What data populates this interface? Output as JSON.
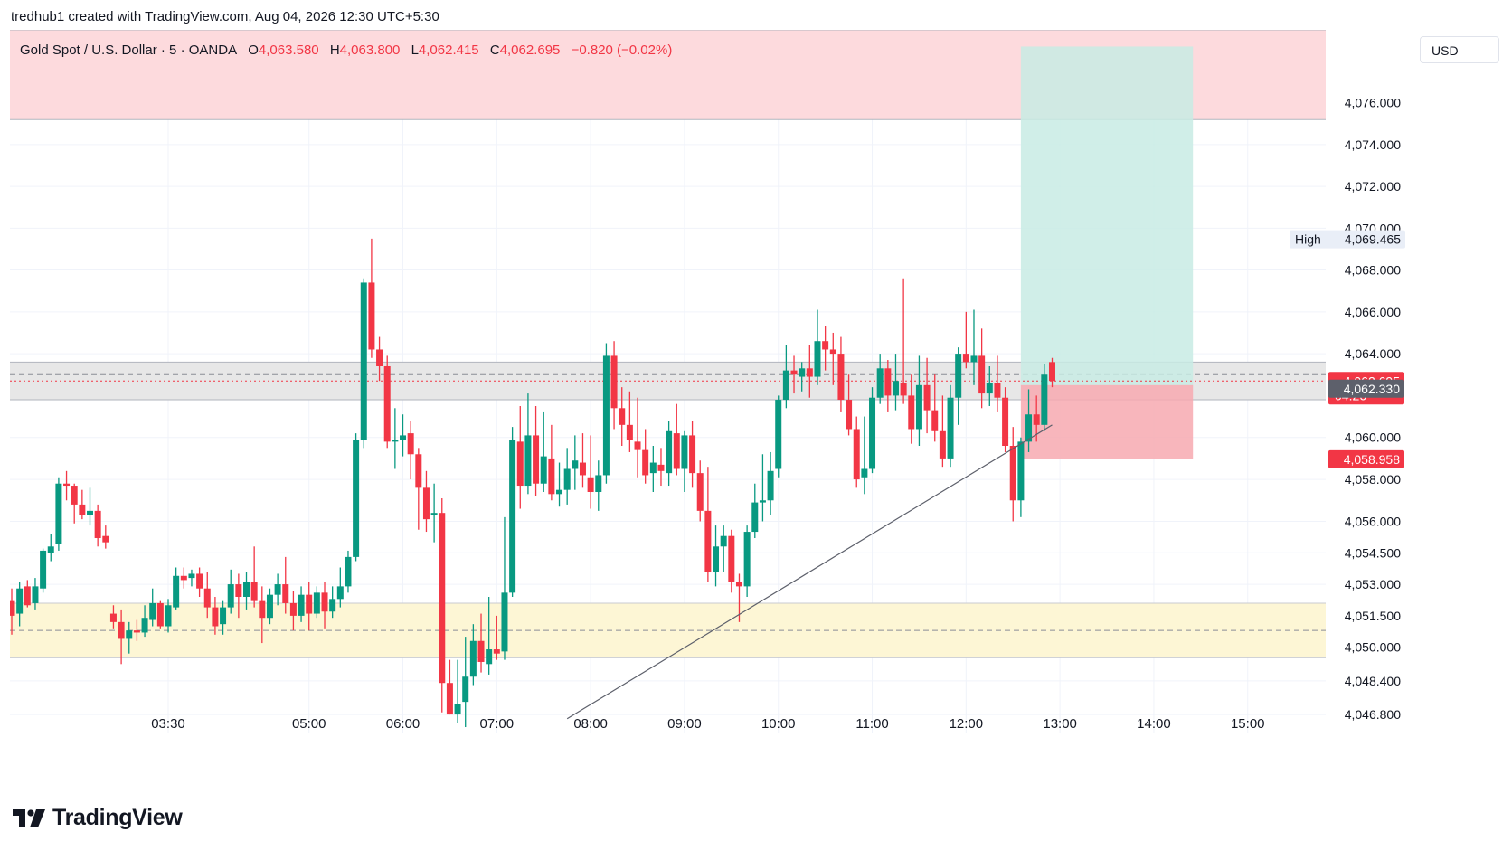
{
  "credit": "tredhub1 created with TradingView.com, Aug 04, 2026 12:30 UTC+5:30",
  "legend": {
    "symbol": "Gold Spot / U.S. Dollar · 5 · OANDA",
    "o_label": "O",
    "o_value": "4,063.580",
    "h_label": "H",
    "h_value": "4,063.800",
    "l_label": "L",
    "l_value": "4,062.415",
    "c_label": "C",
    "c_value": "4,062.695",
    "change": "−0.820 (−0.02%)"
  },
  "currency_button": "USD",
  "brand": "TradingView",
  "colors": {
    "up": "#089981",
    "down": "#f23645",
    "supply_zone": "#fdd8db",
    "demand_zone": "#fdf5d3",
    "mid_zone": "#e6e6e6",
    "target_zone": "#c8ebe4",
    "stop_zone": "#f7a9b0"
  },
  "chart_data": {
    "type": "candlestick",
    "title": "Gold Spot / U.S. Dollar · 5 · OANDA",
    "timeframe_minutes": 5,
    "x_ticks": [
      "03:30",
      "05:00",
      "06:00",
      "07:00",
      "08:00",
      "09:00",
      "10:00",
      "11:00",
      "12:00",
      "13:00",
      "14:00",
      "15:00"
    ],
    "y_ticks": [
      "4,046.800",
      "4,048.400",
      "4,050.000",
      "4,051.500",
      "4,053.000",
      "4,054.500",
      "4,056.000",
      "4,058.000",
      "4,060.000",
      "4,062.000",
      "4,064.000",
      "4,066.000",
      "4,068.000",
      "4,070.000",
      "4,072.000",
      "4,074.000",
      "4,076.000"
    ],
    "y_tick_values": [
      4046.8,
      4048.4,
      4050.0,
      4051.5,
      4053.0,
      4054.5,
      4056.0,
      4058.0,
      4060.0,
      4062.0,
      4064.0,
      4066.0,
      4068.0,
      4070.0,
      4072.0,
      4074.0,
      4076.0
    ],
    "y_scale": "log",
    "ylim": [
      4045.9,
      4079.5
    ],
    "x_range": [
      "01:50",
      "15:25"
    ],
    "grid": true,
    "last_price": {
      "value": "4,062.695",
      "countdown": "04:26",
      "num": 4062.695
    },
    "marked_price": {
      "value": "4,062.330",
      "num": 4062.33
    },
    "stop_price": {
      "value": "4,058.958",
      "num": 4058.958
    },
    "high_marker": {
      "label": "High",
      "value": "4,069.465",
      "num": 4069.465
    },
    "zones": [
      {
        "name": "supply",
        "from": 4075.2,
        "to": 4079.5
      },
      {
        "name": "consolidation",
        "from": 4061.8,
        "to": 4063.6
      },
      {
        "name": "demand",
        "from": 4049.5,
        "to": 4052.1
      }
    ],
    "dashed_levels": [
      4063.0,
      4050.8
    ],
    "long_position": {
      "start": "12:35",
      "end": "14:25",
      "entry": 4062.5,
      "target": 4078.7,
      "stop": 4058.958
    },
    "trendline": {
      "start": [
        "07:45",
        4046.6
      ],
      "end": [
        "12:55",
        4060.6
      ]
    },
    "candles": [
      [
        "01:50",
        4052.2,
        4052.8,
        4050.6,
        4051.5
      ],
      [
        "01:55",
        4051.6,
        4053.1,
        4051.0,
        4052.8
      ],
      [
        "02:00",
        4052.9,
        4053.2,
        4051.9,
        4052.0
      ],
      [
        "02:05",
        4052.1,
        4053.3,
        4051.8,
        4052.9
      ],
      [
        "02:10",
        4052.8,
        4054.7,
        4052.6,
        4054.6
      ],
      [
        "02:15",
        4054.5,
        4055.4,
        4054.1,
        4054.8
      ],
      [
        "02:20",
        4054.9,
        4058.1,
        4054.6,
        4057.8
      ],
      [
        "02:25",
        4057.8,
        4058.4,
        4057.0,
        4057.7
      ],
      [
        "02:30",
        4057.7,
        4057.8,
        4055.9,
        4056.8
      ],
      [
        "02:35",
        4056.8,
        4057.5,
        4056.1,
        4056.3
      ],
      [
        "02:40",
        4056.3,
        4057.6,
        4055.8,
        4056.5
      ],
      [
        "02:45",
        4056.5,
        4056.8,
        4054.8,
        4055.2
      ],
      [
        "02:50",
        4055.3,
        4055.8,
        4054.7,
        4055.0
      ],
      [
        "02:55",
        4051.6,
        4052.0,
        4050.9,
        4051.2
      ],
      [
        "03:00",
        4051.2,
        4051.8,
        4049.2,
        4050.4
      ],
      [
        "03:05",
        4050.4,
        4051.2,
        4049.7,
        4050.8
      ],
      [
        "03:10",
        4050.8,
        4051.3,
        4050.3,
        4050.7
      ],
      [
        "03:15",
        4050.7,
        4052.0,
        4050.5,
        4051.4
      ],
      [
        "03:20",
        4051.3,
        4052.8,
        4051.0,
        4052.1
      ],
      [
        "03:25",
        4052.1,
        4052.2,
        4050.9,
        4051.0
      ],
      [
        "03:30",
        4051.0,
        4052.3,
        4050.7,
        4052.0
      ],
      [
        "03:35",
        4051.9,
        4053.8,
        4051.8,
        4053.4
      ],
      [
        "03:40",
        4053.4,
        4053.8,
        4052.8,
        4053.2
      ],
      [
        "03:45",
        4053.3,
        4053.7,
        4052.9,
        4053.5
      ],
      [
        "03:50",
        4053.5,
        4053.8,
        4052.4,
        4052.8
      ],
      [
        "03:55",
        4052.8,
        4053.6,
        4051.4,
        4051.9
      ],
      [
        "04:00",
        4051.9,
        4052.4,
        4050.6,
        4051.0
      ],
      [
        "04:05",
        4051.1,
        4052.2,
        4050.6,
        4051.9
      ],
      [
        "04:10",
        4051.9,
        4053.7,
        4051.6,
        4053.0
      ],
      [
        "04:15",
        4053.0,
        4053.5,
        4051.4,
        4052.4
      ],
      [
        "04:20",
        4052.4,
        4053.6,
        4051.8,
        4053.1
      ],
      [
        "04:25",
        4053.1,
        4054.8,
        4051.9,
        4052.2
      ],
      [
        "04:30",
        4052.2,
        4052.9,
        4050.2,
        4051.4
      ],
      [
        "04:35",
        4051.4,
        4052.8,
        4051.1,
        4052.5
      ],
      [
        "04:40",
        4052.5,
        4053.5,
        4052.0,
        4053.0
      ],
      [
        "04:45",
        4053.0,
        4054.3,
        4051.6,
        4052.1
      ],
      [
        "04:50",
        4052.1,
        4052.7,
        4050.8,
        4051.5
      ],
      [
        "04:55",
        4051.5,
        4052.9,
        4051.2,
        4052.5
      ],
      [
        "05:00",
        4052.5,
        4053.1,
        4050.8,
        4051.6
      ],
      [
        "05:05",
        4051.6,
        4052.9,
        4051.4,
        4052.6
      ],
      [
        "05:10",
        4052.6,
        4053.1,
        4050.9,
        4051.7
      ],
      [
        "05:15",
        4051.7,
        4052.9,
        4051.4,
        4052.3
      ],
      [
        "05:20",
        4052.3,
        4053.8,
        4051.9,
        4052.9
      ],
      [
        "05:25",
        4052.9,
        4054.6,
        4052.6,
        4054.3
      ],
      [
        "05:30",
        4054.3,
        4060.2,
        4054.1,
        4059.9
      ],
      [
        "05:35",
        4059.9,
        4067.6,
        4059.5,
        4067.4
      ],
      [
        "05:40",
        4067.4,
        4069.5,
        4063.8,
        4064.2
      ],
      [
        "05:45",
        4064.2,
        4064.8,
        4062.7,
        4063.4
      ],
      [
        "05:50",
        4063.4,
        4063.9,
        4059.5,
        4059.8
      ],
      [
        "05:55",
        4059.8,
        4061.4,
        4058.5,
        4059.9
      ],
      [
        "06:00",
        4059.9,
        4061.1,
        4059.1,
        4060.1
      ],
      [
        "06:05",
        4060.2,
        4060.8,
        4058.0,
        4059.2
      ],
      [
        "06:10",
        4059.2,
        4059.5,
        4055.6,
        4057.6
      ],
      [
        "06:15",
        4057.6,
        4058.4,
        4055.5,
        4056.1
      ],
      [
        "06:20",
        4056.3,
        4057.8,
        4055.0,
        4056.4
      ],
      [
        "06:25",
        4056.4,
        4057.1,
        4046.9,
        4048.3
      ],
      [
        "06:30",
        4048.3,
        4049.4,
        4046.8,
        4046.8
      ],
      [
        "06:35",
        4046.8,
        4049.4,
        4046.4,
        4047.3
      ],
      [
        "06:40",
        4047.4,
        4050.5,
        4046.2,
        4048.6
      ],
      [
        "06:45",
        4048.6,
        4051.1,
        4048.2,
        4050.3
      ],
      [
        "06:50",
        4050.3,
        4051.6,
        4048.8,
        4049.3
      ],
      [
        "06:55",
        4049.2,
        4052.4,
        4048.7,
        4049.9
      ],
      [
        "07:00",
        4049.9,
        4051.5,
        4049.4,
        4049.7
      ],
      [
        "07:05",
        4049.8,
        4056.2,
        4049.4,
        4052.6
      ],
      [
        "07:10",
        4052.6,
        4060.5,
        4052.4,
        4059.9
      ],
      [
        "07:15",
        4059.8,
        4061.5,
        4056.6,
        4057.7
      ],
      [
        "07:20",
        4057.7,
        4062.1,
        4057.3,
        4060.1
      ],
      [
        "07:25",
        4060.1,
        4061.5,
        4057.2,
        4057.8
      ],
      [
        "07:30",
        4057.8,
        4061.2,
        4057.4,
        4059.1
      ],
      [
        "07:35",
        4059.0,
        4060.6,
        4057.0,
        4057.3
      ],
      [
        "07:40",
        4057.3,
        4058.8,
        4056.7,
        4057.5
      ],
      [
        "07:45",
        4057.5,
        4059.5,
        4056.8,
        4058.5
      ],
      [
        "07:50",
        4058.5,
        4060.1,
        4057.5,
        4058.9
      ],
      [
        "07:55",
        4058.8,
        4060.2,
        4057.6,
        4058.2
      ],
      [
        "08:00",
        4058.1,
        4060.1,
        4056.6,
        4057.4
      ],
      [
        "08:05",
        4057.4,
        4058.9,
        4056.5,
        4058.2
      ],
      [
        "08:10",
        4058.2,
        4064.5,
        4057.8,
        4063.9
      ],
      [
        "08:15",
        4063.9,
        4064.6,
        4060.4,
        4061.4
      ],
      [
        "08:20",
        4061.4,
        4062.4,
        4059.6,
        4060.6
      ],
      [
        "08:25",
        4060.6,
        4062.2,
        4059.3,
        4059.9
      ],
      [
        "08:30",
        4059.8,
        4061.9,
        4058.1,
        4059.4
      ],
      [
        "08:35",
        4059.4,
        4060.4,
        4057.8,
        4058.2
      ],
      [
        "08:40",
        4058.3,
        4059.6,
        4057.4,
        4058.8
      ],
      [
        "08:45",
        4058.7,
        4059.5,
        4057.7,
        4058.4
      ],
      [
        "08:50",
        4058.3,
        4060.8,
        4057.7,
        4060.3
      ],
      [
        "08:55",
        4060.2,
        4061.6,
        4058.2,
        4058.5
      ],
      [
        "09:00",
        4058.5,
        4060.3,
        4057.4,
        4060.1
      ],
      [
        "09:05",
        4060.1,
        4060.8,
        4057.6,
        4058.3
      ],
      [
        "09:10",
        4058.3,
        4058.9,
        4056.0,
        4056.5
      ],
      [
        "09:15",
        4056.5,
        4058.6,
        4053.1,
        4053.6
      ],
      [
        "09:20",
        4053.6,
        4055.8,
        4052.9,
        4054.8
      ],
      [
        "09:25",
        4054.8,
        4055.8,
        4053.6,
        4055.3
      ],
      [
        "09:30",
        4055.3,
        4055.6,
        4052.6,
        4053.1
      ],
      [
        "09:35",
        4053.1,
        4053.5,
        4051.2,
        4052.9
      ],
      [
        "09:40",
        4052.9,
        4055.8,
        4052.4,
        4055.5
      ],
      [
        "09:45",
        4055.5,
        4057.8,
        4055.2,
        4056.9
      ],
      [
        "09:50",
        4056.9,
        4059.2,
        4056.0,
        4057.0
      ],
      [
        "09:55",
        4057.0,
        4059.3,
        4056.3,
        4058.4
      ],
      [
        "10:00",
        4058.5,
        4062.0,
        4058.1,
        4061.8
      ],
      [
        "10:05",
        4061.8,
        4064.4,
        4061.4,
        4063.2
      ],
      [
        "10:10",
        4063.2,
        4063.9,
        4062.1,
        4063.0
      ],
      [
        "10:15",
        4062.9,
        4063.6,
        4062.2,
        4063.3
      ],
      [
        "10:20",
        4063.3,
        4064.4,
        4061.9,
        4062.9
      ],
      [
        "10:25",
        4062.9,
        4066.1,
        4062.5,
        4064.6
      ],
      [
        "10:30",
        4064.6,
        4065.3,
        4063.2,
        4064.2
      ],
      [
        "10:35",
        4064.2,
        4065.0,
        4062.5,
        4064.0
      ],
      [
        "10:40",
        4064.0,
        4064.8,
        4061.2,
        4061.8
      ],
      [
        "10:45",
        4061.8,
        4063.0,
        4060.1,
        4060.4
      ],
      [
        "10:50",
        4060.4,
        4061.0,
        4057.6,
        4058.0
      ],
      [
        "10:55",
        4058.1,
        4061.0,
        4057.3,
        4058.5
      ],
      [
        "11:00",
        4058.5,
        4062.4,
        4058.3,
        4061.9
      ],
      [
        "11:05",
        4061.9,
        4064.0,
        4061.6,
        4063.3
      ],
      [
        "11:10",
        4063.3,
        4063.7,
        4061.2,
        4062.0
      ],
      [
        "11:15",
        4062.0,
        4064.0,
        4061.3,
        4062.7
      ],
      [
        "11:20",
        4062.6,
        4067.6,
        4061.6,
        4062.0
      ],
      [
        "11:25",
        4062.0,
        4063.0,
        4059.7,
        4060.4
      ],
      [
        "11:30",
        4060.4,
        4063.9,
        4059.6,
        4062.5
      ],
      [
        "11:35",
        4062.5,
        4063.8,
        4060.2,
        4061.3
      ],
      [
        "11:40",
        4061.3,
        4063.0,
        4059.8,
        4060.3
      ],
      [
        "11:45",
        4060.3,
        4062.0,
        4058.6,
        4059.0
      ],
      [
        "11:50",
        4059.0,
        4062.5,
        4058.6,
        4061.9
      ],
      [
        "11:55",
        4061.9,
        4064.3,
        4060.6,
        4064.0
      ],
      [
        "12:00",
        4064.0,
        4066.0,
        4063.3,
        4063.6
      ],
      [
        "12:05",
        4063.6,
        4066.1,
        4062.5,
        4063.9
      ],
      [
        "12:10",
        4063.9,
        4065.2,
        4061.4,
        4062.1
      ],
      [
        "12:15",
        4062.1,
        4063.4,
        4061.5,
        4062.6
      ],
      [
        "12:20",
        4062.6,
        4063.9,
        4061.2,
        4061.9
      ],
      [
        "12:25",
        4061.9,
        4062.4,
        4059.3,
        4059.6
      ],
      [
        "12:30",
        4059.6,
        4060.5,
        4056.0,
        4057.0
      ],
      [
        "12:35",
        4057.0,
        4060.0,
        4056.2,
        4059.8
      ],
      [
        "12:40",
        4059.8,
        4062.3,
        4059.3,
        4061.1
      ],
      [
        "12:45",
        4061.1,
        4062.0,
        4059.8,
        4060.6
      ],
      [
        "12:50",
        4060.6,
        4063.5,
        4060.3,
        4063.0
      ],
      [
        "12:55",
        4063.6,
        4063.8,
        4062.4,
        4062.7
      ]
    ]
  }
}
